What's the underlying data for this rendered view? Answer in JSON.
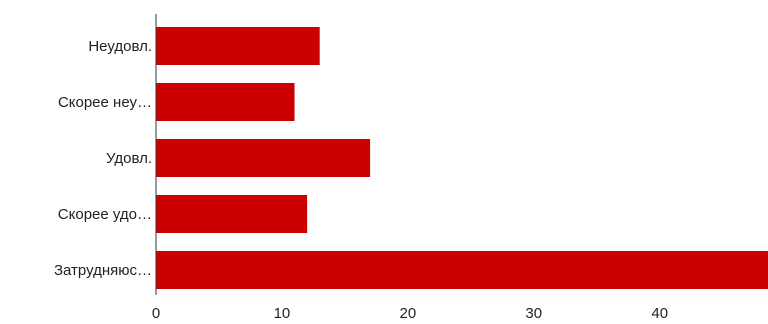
{
  "chart_data": {
    "type": "bar",
    "orientation": "horizontal",
    "categories": [
      "Неудовл.",
      "Скорее неу…",
      "Удовл.",
      "Скорее удо…",
      "Затрудняюс…"
    ],
    "values": [
      13,
      11,
      17,
      12,
      49
    ],
    "xlim": [
      0,
      48.6
    ],
    "xticks": [
      0,
      10,
      20,
      30,
      40
    ],
    "grid": false,
    "legend": "none",
    "bar_color": "#cc0000",
    "axis_color": "#333333"
  }
}
